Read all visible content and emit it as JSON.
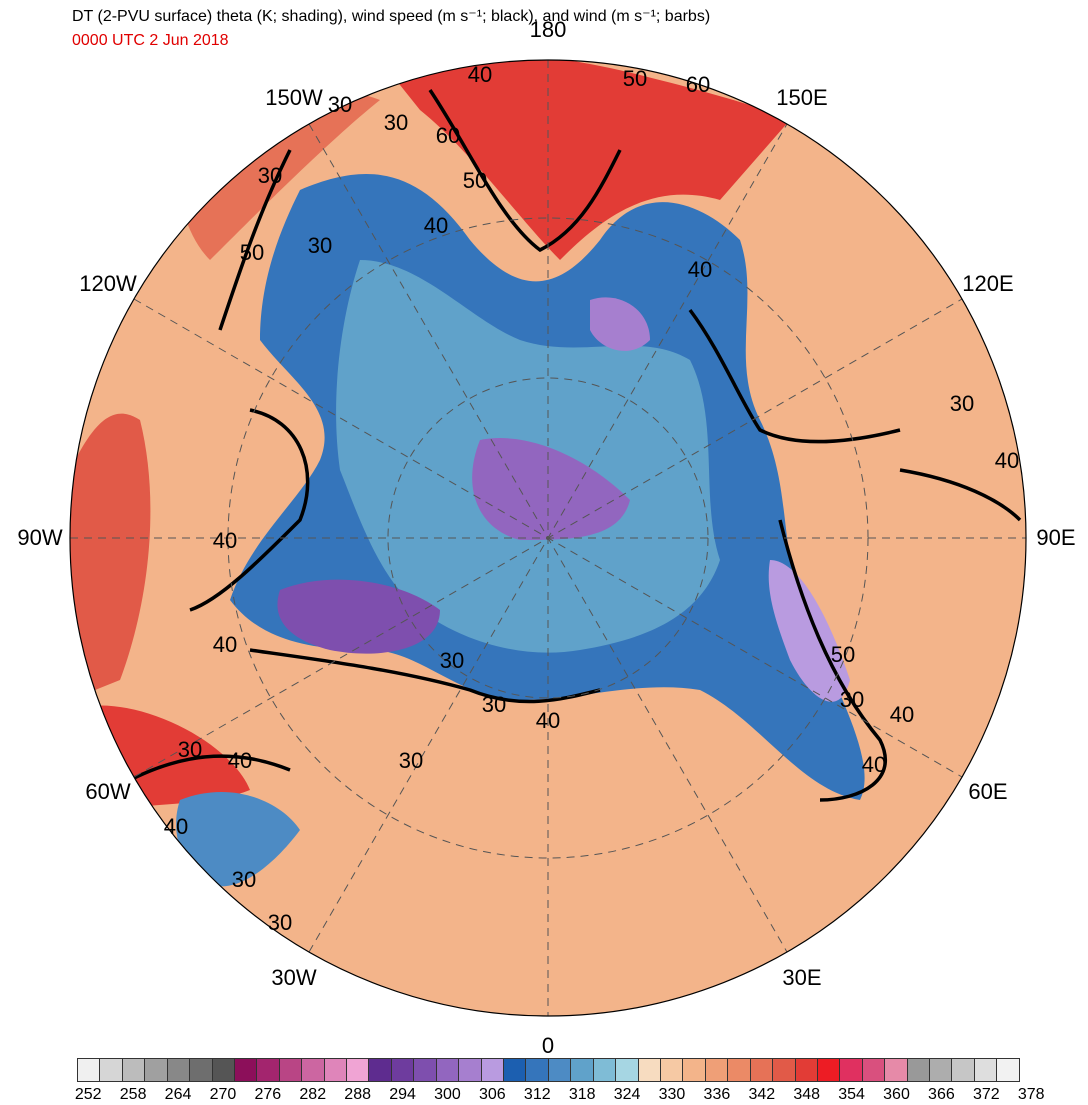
{
  "title": "DT (2-PVU surface) theta (K; shading), wind speed (m s⁻¹; black), and wind (m s⁻¹; barbs)",
  "valid_time": "0000 UTC 2 Jun 2018",
  "longitude_labels": [
    {
      "text": "180",
      "deg": 180
    },
    {
      "text": "150E",
      "deg": 150
    },
    {
      "text": "120E",
      "deg": 120
    },
    {
      "text": "90E",
      "deg": 90
    },
    {
      "text": "60E",
      "deg": 60
    },
    {
      "text": "30E",
      "deg": 30
    },
    {
      "text": "0",
      "deg": 0
    },
    {
      "text": "30W",
      "deg": -30
    },
    {
      "text": "60W",
      "deg": -60
    },
    {
      "text": "90W",
      "deg": -90
    },
    {
      "text": "120W",
      "deg": -120
    },
    {
      "text": "150W",
      "deg": -150
    }
  ],
  "contour_labels": [
    "40",
    "50",
    "60",
    "30",
    "60",
    "50",
    "40",
    "30",
    "30",
    "50",
    "30",
    "40",
    "30",
    "40",
    "40",
    "40",
    "30",
    "30",
    "40",
    "30",
    "50",
    "30",
    "40",
    "40",
    "30",
    "40",
    "40",
    "30",
    "30"
  ],
  "colorbar": {
    "colors": [
      "#f0f0f0",
      "#d6d6d6",
      "#bcbcbc",
      "#a0a0a0",
      "#888888",
      "#6e6e6e",
      "#555555",
      "#8c0f5a",
      "#a3256e",
      "#b94585",
      "#cc66a1",
      "#df85ba",
      "#f0a4d4",
      "#5e2c8f",
      "#6e3c9e",
      "#7e4fae",
      "#9266bf",
      "#a67fcf",
      "#b99be0",
      "#1c5fb0",
      "#3575bb",
      "#4d8bc4",
      "#60a2ca",
      "#7fbcd6",
      "#a6d6e3",
      "#f7dcc0",
      "#f6c9a4",
      "#f3b48a",
      "#ef9f77",
      "#eb8a66",
      "#e67257",
      "#e15a48",
      "#e23c36",
      "#ed1c24",
      "#e03060",
      "#d9507e",
      "#e68aa8",
      "#999999",
      "#adadad",
      "#c6c6c6",
      "#dedede",
      "#f2f2f2"
    ],
    "labels": [
      "252",
      "258",
      "264",
      "270",
      "276",
      "282",
      "288",
      "294",
      "300",
      "306",
      "312",
      "318",
      "324",
      "330",
      "336",
      "342",
      "348",
      "354",
      "360",
      "366",
      "372",
      "378"
    ]
  }
}
